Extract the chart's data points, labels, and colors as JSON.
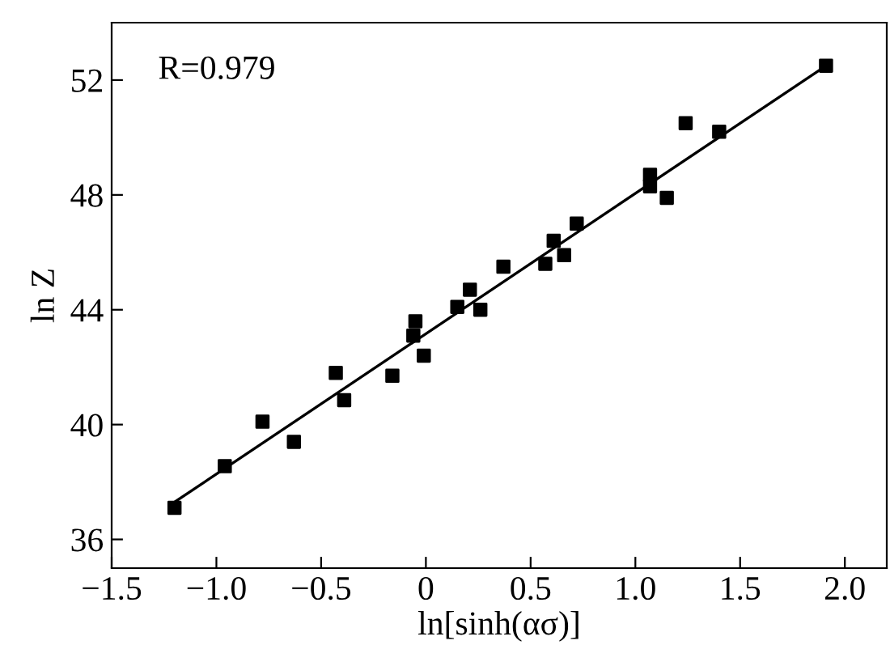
{
  "chart_data": {
    "type": "scatter",
    "xlabel": "ln[sinh(ασ)]",
    "ylabel": "ln Z",
    "annotations": [
      "R=0.979"
    ],
    "xlim": [
      -1.5,
      2.2
    ],
    "ylim": [
      35,
      54
    ],
    "xticks": [
      {
        "value": -1.5,
        "label": "−1.5"
      },
      {
        "value": -1.0,
        "label": "−1.0"
      },
      {
        "value": -0.5,
        "label": "−0.5"
      },
      {
        "value": 0,
        "label": "0"
      },
      {
        "value": 0.5,
        "label": "0.5"
      },
      {
        "value": 1.0,
        "label": "1.0"
      },
      {
        "value": 1.5,
        "label": "1.5"
      },
      {
        "value": 2.0,
        "label": "2.0"
      }
    ],
    "yticks": [
      36,
      40,
      44,
      48,
      52
    ],
    "grid": false,
    "series": [
      {
        "marker": "square",
        "color": "#000000",
        "x": [
          -1.2,
          -0.96,
          -0.78,
          -0.63,
          -0.43,
          -0.39,
          -0.16,
          -0.06,
          -0.05,
          -0.01,
          0.15,
          0.21,
          0.26,
          0.37,
          0.57,
          0.61,
          0.66,
          0.72,
          1.07,
          1.07,
          1.15,
          1.24,
          1.4,
          1.91
        ],
        "values": [
          37.1,
          38.55,
          40.1,
          39.4,
          41.8,
          40.85,
          41.7,
          43.1,
          43.6,
          42.4,
          44.1,
          44.7,
          44.0,
          45.5,
          45.6,
          46.4,
          45.9,
          47.0,
          48.7,
          48.3,
          47.9,
          50.5,
          50.2,
          52.5
        ]
      },
      {
        "type": "line",
        "color": "#000000",
        "x": [
          -1.2,
          1.91
        ],
        "values": [
          37.3,
          52.5
        ]
      }
    ]
  }
}
